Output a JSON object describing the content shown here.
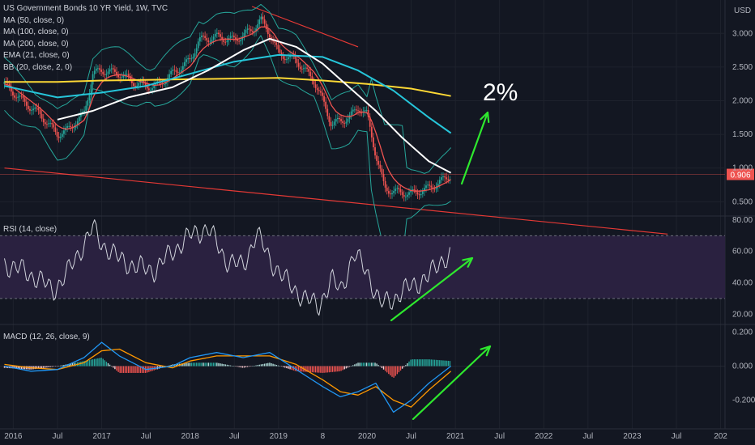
{
  "header": {
    "symbol_line": "US Government Bonds 10 YR Yield, 1W, TVC",
    "indicators": [
      "MA (50, close, 0)",
      "MA (100, close, 0)",
      "MA (200, close, 0)",
      "EMA (21, close, 0)",
      "BB (20, close, 2, 0)"
    ],
    "currency": "USD"
  },
  "colors": {
    "background": "#131722",
    "channel": "#e53935",
    "ma50": "#ffffff",
    "ma100": "#26c6da",
    "ma200": "#fdd835",
    "ema21": "#ef5350",
    "bb": "#26a69a",
    "arrow": "#2ee82e",
    "rsi_band": "#2a2140",
    "macd": "#2196f3",
    "signal": "#ff9800"
  },
  "chart_data": [
    {
      "type": "line",
      "panel": "price",
      "annotation_text": "2%",
      "price_label": "0.906",
      "y_ticks": [
        "3.000",
        "2.500",
        "2.000",
        "1.500",
        "1.000",
        "0.500"
      ],
      "ylim": [
        0.3,
        3.4
      ],
      "x_ticks": [
        "2016",
        "Jul",
        "2017",
        "Jul",
        "2018",
        "Jul",
        "2019",
        "8",
        "2020",
        "Jul",
        "2021",
        "Jul",
        "2022",
        "Jul",
        "2023",
        "Jul",
        "202"
      ],
      "series": [
        {
          "key": "price",
          "x": [
            2015.9,
            2016.1,
            2016.3,
            2016.5,
            2016.6,
            2016.8,
            2016.9,
            2017.0,
            2017.2,
            2017.4,
            2017.6,
            2017.8,
            2018.0,
            2018.1,
            2018.3,
            2018.5,
            2018.7,
            2018.8,
            2018.9,
            2019.0,
            2019.2,
            2019.4,
            2019.5,
            2019.6,
            2019.8,
            2019.9,
            2020.0,
            2020.1,
            2020.2,
            2020.3,
            2020.5,
            2020.7,
            2020.9,
            2020.95
          ],
          "values": [
            2.25,
            2.0,
            1.8,
            1.5,
            1.55,
            1.8,
            2.4,
            2.45,
            2.4,
            2.25,
            2.2,
            2.4,
            2.6,
            2.9,
            2.95,
            2.9,
            3.05,
            3.2,
            3.0,
            2.7,
            2.6,
            2.3,
            2.0,
            1.65,
            1.75,
            1.9,
            1.8,
            1.2,
            0.7,
            0.65,
            0.62,
            0.7,
            0.85,
            0.906
          ]
        },
        {
          "key": "ma50",
          "x": [
            2016.5,
            2016.9,
            2017.3,
            2017.8,
            2018.2,
            2018.6,
            2018.9,
            2019.2,
            2019.5,
            2019.8,
            2020.1,
            2020.4,
            2020.7,
            2020.95
          ],
          "values": [
            1.72,
            1.85,
            2.05,
            2.2,
            2.45,
            2.75,
            2.92,
            2.8,
            2.55,
            2.2,
            1.85,
            1.45,
            1.1,
            0.93
          ]
        },
        {
          "key": "ma100",
          "x": [
            2015.9,
            2016.5,
            2017.0,
            2017.5,
            2018.0,
            2018.5,
            2019.0,
            2019.5,
            2019.9,
            2020.3,
            2020.7,
            2020.95
          ],
          "values": [
            2.22,
            2.05,
            2.12,
            2.22,
            2.4,
            2.58,
            2.68,
            2.65,
            2.45,
            2.15,
            1.75,
            1.52
          ]
        },
        {
          "key": "ma200",
          "x": [
            2015.9,
            2016.5,
            2017.0,
            2017.5,
            2018.0,
            2018.5,
            2019.0,
            2019.5,
            2020.0,
            2020.5,
            2020.95
          ],
          "values": [
            2.28,
            2.28,
            2.3,
            2.31,
            2.32,
            2.33,
            2.34,
            2.3,
            2.25,
            2.18,
            2.07
          ]
        }
      ],
      "channel": {
        "upper": {
          "x": [
            2018.7,
            2019.9
          ],
          "values": [
            3.4,
            2.8
          ]
        },
        "lower": {
          "x": [
            2015.9,
            2023.4
          ],
          "values": [
            1.0,
            0.02
          ]
        }
      }
    },
    {
      "type": "line",
      "panel": "rsi",
      "title": "RSI (14, close)",
      "y_ticks": [
        "80.00",
        "60.00",
        "40.00",
        "20.00"
      ],
      "ylim": [
        14,
        82
      ],
      "band": [
        30,
        70
      ],
      "series": [
        {
          "key": "rsi",
          "x": [
            2015.9,
            2016.1,
            2016.3,
            2016.45,
            2016.6,
            2016.75,
            2016.9,
            2017.0,
            2017.2,
            2017.4,
            2017.6,
            2017.8,
            2018.0,
            2018.2,
            2018.4,
            2018.6,
            2018.75,
            2018.9,
            2019.1,
            2019.3,
            2019.45,
            2019.6,
            2019.7,
            2019.85,
            2020.0,
            2020.15,
            2020.3,
            2020.5,
            2020.7,
            2020.85,
            2020.95
          ],
          "values": [
            52,
            48,
            42,
            35,
            45,
            60,
            75,
            65,
            55,
            50,
            48,
            60,
            70,
            75,
            55,
            50,
            72,
            55,
            40,
            30,
            25,
            42,
            35,
            58,
            48,
            26,
            30,
            38,
            44,
            55,
            58
          ]
        }
      ]
    },
    {
      "type": "bar",
      "panel": "macd",
      "title": "MACD (12, 26, close, 9)",
      "y_ticks": [
        "0.200",
        "0.000",
        "-0.200"
      ],
      "ylim": [
        -0.33,
        0.24
      ],
      "series": [
        {
          "key": "macd",
          "x": [
            2015.9,
            2016.2,
            2016.5,
            2016.8,
            2017.0,
            2017.2,
            2017.5,
            2017.8,
            2018.0,
            2018.3,
            2018.6,
            2018.9,
            2019.2,
            2019.5,
            2019.7,
            2019.9,
            2020.1,
            2020.3,
            2020.5,
            2020.7,
            2020.95
          ],
          "values": [
            0.0,
            -0.03,
            -0.02,
            0.05,
            0.14,
            0.06,
            -0.02,
            0.0,
            0.05,
            0.08,
            0.05,
            0.08,
            -0.02,
            -0.12,
            -0.18,
            -0.15,
            -0.1,
            -0.27,
            -0.2,
            -0.1,
            0.0
          ]
        },
        {
          "key": "signal",
          "x": [
            2015.9,
            2016.2,
            2016.5,
            2016.8,
            2017.0,
            2017.2,
            2017.5,
            2017.8,
            2018.0,
            2018.3,
            2018.6,
            2018.9,
            2019.2,
            2019.5,
            2019.7,
            2019.9,
            2020.1,
            2020.3,
            2020.5,
            2020.7,
            2020.95
          ],
          "values": [
            0.01,
            -0.01,
            -0.02,
            0.02,
            0.09,
            0.1,
            0.02,
            -0.01,
            0.03,
            0.06,
            0.06,
            0.06,
            0.01,
            -0.08,
            -0.15,
            -0.17,
            -0.12,
            -0.2,
            -0.24,
            -0.14,
            -0.03
          ]
        }
      ]
    }
  ]
}
